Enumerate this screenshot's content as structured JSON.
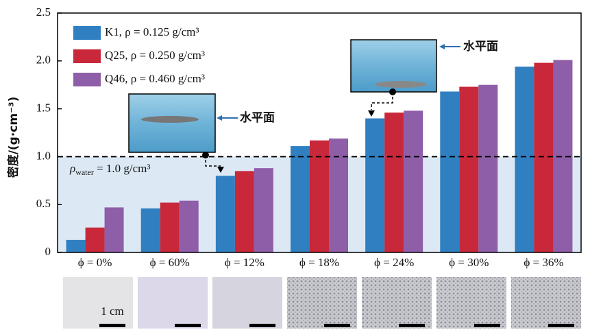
{
  "chart_data": {
    "type": "bar",
    "y_label": "密度/(g·cm⁻³)",
    "categories": [
      "ϕ = 0%",
      "ϕ = 60%",
      "ϕ = 12%",
      "ϕ = 18%",
      "ϕ = 24%",
      "ϕ = 30%",
      "ϕ = 36%"
    ],
    "series": [
      {
        "name": "K1, ρ = 0.125 g/cm³",
        "color": "#2f7fc1",
        "values": [
          0.13,
          0.46,
          0.8,
          1.11,
          1.4,
          1.68,
          1.94
        ]
      },
      {
        "name": "Q25, ρ = 0.250 g/cm³",
        "color": "#c8283a",
        "values": [
          0.26,
          0.52,
          0.85,
          1.17,
          1.46,
          1.73,
          1.98
        ]
      },
      {
        "name": "Q46, ρ = 0.460 g/cm³",
        "color": "#8e5ea8",
        "values": [
          0.47,
          0.54,
          0.88,
          1.19,
          1.48,
          1.75,
          2.01
        ]
      }
    ],
    "ylim": [
      0,
      2.5
    ],
    "yticks": [
      0,
      0.5,
      {
        "value": 1,
        "label": "1.0"
      },
      1.5,
      {
        "value": 2,
        "label": "2.0"
      },
      2.5
    ],
    "legend": "upper left",
    "reference_line": {
      "value": 1,
      "symbol": "ρ",
      "subscript": "water",
      "text": " = 1.0 g/cm³",
      "fill": "#dce9f5"
    },
    "insets": [
      {
        "label": "水平面"
      },
      {
        "label": "水平面"
      }
    ],
    "scale_bar_label": "1 cm"
  }
}
